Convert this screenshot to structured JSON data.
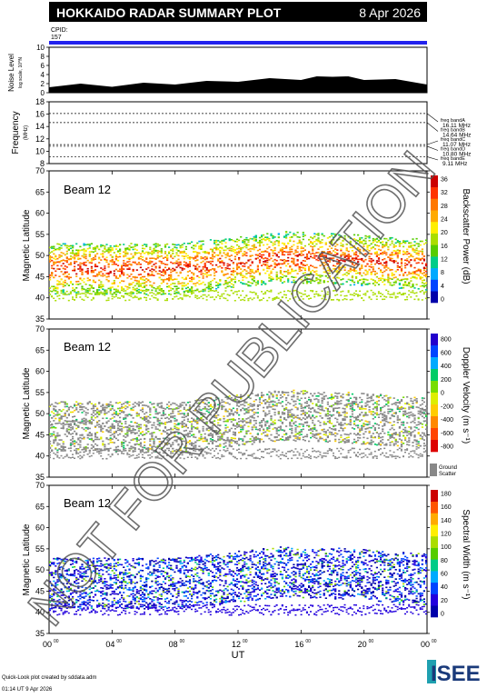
{
  "header": {
    "title": "HOKKAIDO RADAR SUMMARY PLOT",
    "date": "8 Apr 2026",
    "cpid_label": "CPID:",
    "cpid_value": "157"
  },
  "noise_panel": {
    "ylabel": "Noise Level",
    "ylabel_small": "log scale, 10^N",
    "yticks": [
      "0",
      "2",
      "4",
      "6",
      "8",
      "10"
    ]
  },
  "freq_panel": {
    "ylabel": "Frequency",
    "ylabel_unit": "(MHz)",
    "yticks": [
      "8",
      "10",
      "12",
      "14",
      "16",
      "18"
    ],
    "bands": [
      {
        "name": "freq bandA",
        "value": "16.11 MHz"
      },
      {
        "name": "freq bandB",
        "value": "14.64 MHz"
      },
      {
        "name": "freq bandC",
        "value": "11.07 MHz"
      },
      {
        "name": "freq bandD",
        "value": "10.80 MHz"
      },
      {
        "name": "freq bandE",
        "value": "9.11 MHz"
      }
    ]
  },
  "panels": [
    {
      "beam": "Beam 12",
      "ylabel": "Magnetic Latitude",
      "cbar_label": "Backscatter Power (dB)",
      "cbar_ticks": [
        "0",
        "4",
        "8",
        "12",
        "16",
        "20",
        "24",
        "28",
        "32",
        "36"
      ],
      "cbar_colors": [
        "#0000aa",
        "#0044ff",
        "#00aaff",
        "#00cc88",
        "#55cc00",
        "#aadd00",
        "#ffee00",
        "#ffaa00",
        "#ff7700",
        "#ff3300",
        "#cc0000"
      ]
    },
    {
      "beam": "Beam 12",
      "ylabel": "Magnetic Latitude",
      "cbar_label": "Doppler Velocity (m s⁻¹)",
      "cbar_ticks": [
        "800",
        "600",
        "400",
        "200",
        "0",
        "-200",
        "-400",
        "-600",
        "-800"
      ],
      "cbar_colors": [
        "#2200cc",
        "#0044ff",
        "#00aaff",
        "#00cc66",
        "#77dd00",
        "#ddee00",
        "#ffcc00",
        "#ff8800",
        "#ff4400",
        "#dd0000"
      ],
      "ground_scatter_label1": "Ground",
      "ground_scatter_label2": "Scatter"
    },
    {
      "beam": "Beam 12",
      "ylabel": "Magnetic Latitude",
      "cbar_label": "Spectral Width (m s⁻¹)",
      "cbar_ticks": [
        "0",
        "20",
        "40",
        "60",
        "80",
        "100",
        "120",
        "140",
        "160",
        "180"
      ],
      "cbar_colors": [
        "#0000aa",
        "#2200dd",
        "#0044ff",
        "#00aaff",
        "#00cc88",
        "#55cc00",
        "#aadd00",
        "#ffee00",
        "#ffaa00",
        "#ff5500",
        "#cc0000"
      ]
    }
  ],
  "lat_ticks": [
    "35",
    "40",
    "45",
    "50",
    "55",
    "60",
    "65",
    "70"
  ],
  "x_axis": {
    "ticks": [
      "00",
      "04",
      "08",
      "12",
      "16",
      "20",
      "00"
    ],
    "tick_sup": "00",
    "label": "UT"
  },
  "footer": {
    "line1": "Quick-Look plot created by sddata.adm",
    "line2": "01:14 UT  9 Apr 2026",
    "logo": "ISEE"
  },
  "watermark": "NOT FOR PUBLICATION",
  "chart_data": [
    {
      "type": "area",
      "title": "Noise Level",
      "x": [
        0,
        2,
        4,
        6,
        8,
        10,
        12,
        14,
        16,
        17,
        18,
        19,
        20,
        22,
        24
      ],
      "values": [
        1.2,
        1.4,
        1.3,
        1.6,
        1.8,
        2.0,
        2.4,
        2.6,
        2.8,
        3.0,
        3.5,
        3.0,
        2.8,
        2.4,
        1.8
      ],
      "xlim": [
        0,
        24
      ],
      "ylim": [
        0,
        10
      ]
    },
    {
      "type": "line",
      "title": "Frequency",
      "series": [
        {
          "name": "freq bandA",
          "values": [
            16.11
          ]
        },
        {
          "name": "freq bandB",
          "values": [
            14.64
          ]
        },
        {
          "name": "freq bandC",
          "values": [
            11.07
          ]
        },
        {
          "name": "freq bandD",
          "values": [
            10.8
          ]
        },
        {
          "name": "freq bandE",
          "values": [
            9.11
          ]
        }
      ],
      "ylim": [
        8,
        18
      ]
    },
    {
      "type": "heatmap",
      "title": "Backscatter Power (dB)",
      "xlim": [
        0,
        24
      ],
      "ylim": [
        35,
        70
      ],
      "zlim": [
        0,
        36
      ]
    },
    {
      "type": "heatmap",
      "title": "Doppler Velocity (m s⁻¹)",
      "xlim": [
        0,
        24
      ],
      "ylim": [
        35,
        70
      ],
      "zlim": [
        -800,
        800
      ]
    },
    {
      "type": "heatmap",
      "title": "Spectral Width (m s⁻¹)",
      "xlim": [
        0,
        24
      ],
      "ylim": [
        35,
        70
      ],
      "zlim": [
        0,
        180
      ]
    }
  ]
}
